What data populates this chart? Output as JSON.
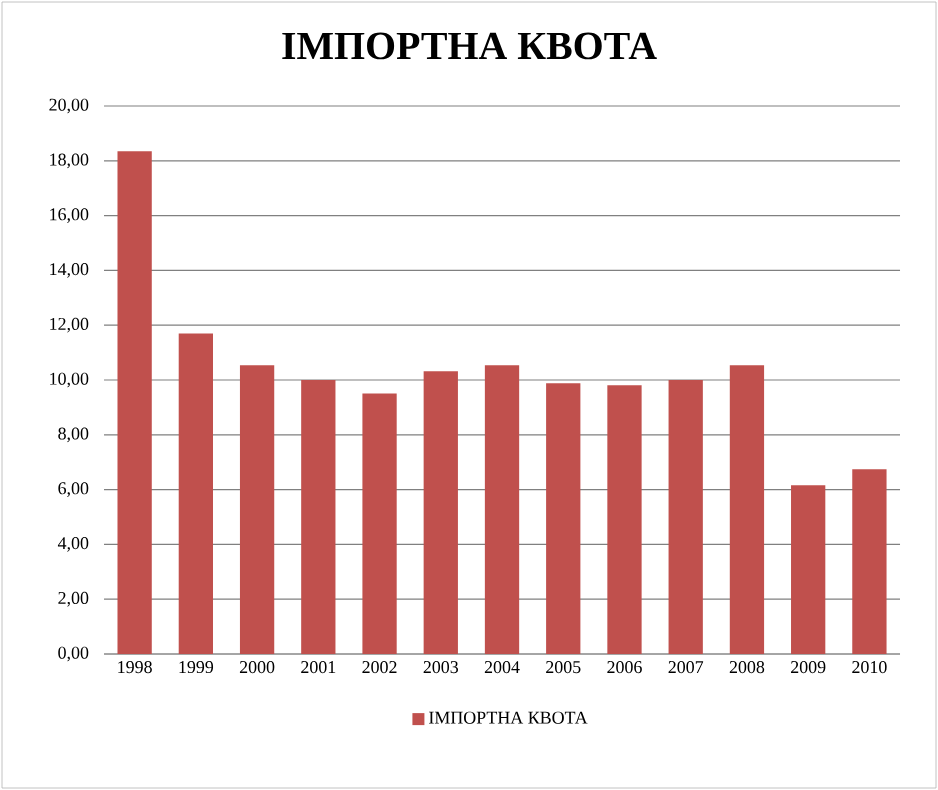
{
  "chart_data": {
    "type": "bar",
    "title": "ІМПОРТНА КВОТА",
    "categories": [
      "1998",
      "1999",
      "2000",
      "2001",
      "2002",
      "2003",
      "2004",
      "2005",
      "2006",
      "2007",
      "2008",
      "2009",
      "2010"
    ],
    "series": [
      {
        "name": "ІМПОРТНА КВОТА",
        "color": "#c0504d",
        "values": [
          18.35,
          11.7,
          10.54,
          10.0,
          9.51,
          10.32,
          10.54,
          9.88,
          9.81,
          10.0,
          10.54,
          6.16,
          6.74
        ]
      }
    ],
    "ylim": [
      0,
      20
    ],
    "yticks": [
      {
        "value": 0,
        "label": "0,00"
      },
      {
        "value": 2,
        "label": "2,00"
      },
      {
        "value": 4,
        "label": "4,00"
      },
      {
        "value": 6,
        "label": "6,00"
      },
      {
        "value": 8,
        "label": "8,00"
      },
      {
        "value": 10,
        "label": "10,00"
      },
      {
        "value": 12,
        "label": "12,00"
      },
      {
        "value": 14,
        "label": "14,00"
      },
      {
        "value": 16,
        "label": "16,00"
      },
      {
        "value": 18,
        "label": "18,00"
      },
      {
        "value": 20,
        "label": "20,00"
      }
    ],
    "grid": "y",
    "legend": "bottom"
  }
}
